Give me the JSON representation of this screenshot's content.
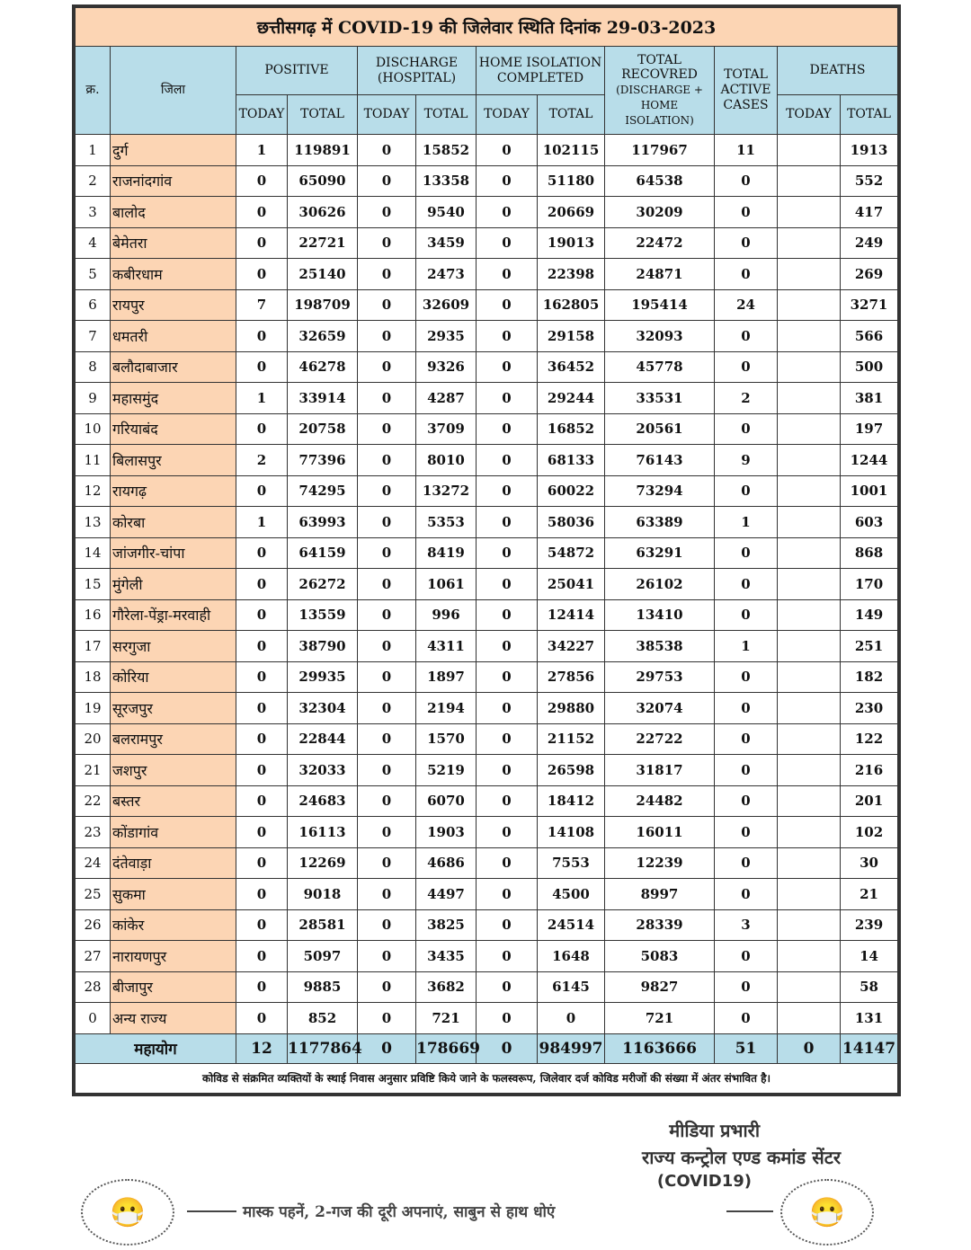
{
  "title": "छत्तीसगढ़ में COVID-19 की जिलेवार स्थिति दिनांक 29-03-2023",
  "headers": {
    "sr": "क्र.",
    "district": "जिला",
    "positive": "POSITIVE",
    "discharge": "DISCHARGE (HOSPITAL)",
    "home_isolation": "HOME ISOLATION COMPLETED",
    "total_recovered": "TOTAL RECOVRED",
    "total_recovered_note": "(DISCHARGE + HOME ISOLATION)",
    "active": "TOTAL ACTIVE CASES",
    "deaths": "DEATHS",
    "today": "TODAY",
    "total": "TOTAL"
  },
  "rows": [
    [
      "1",
      "दुर्ग",
      "1",
      "119891",
      "0",
      "15852",
      "0",
      "102115",
      "117967",
      "11",
      "",
      "1913"
    ],
    [
      "2",
      "राजनांदगांव",
      "0",
      "65090",
      "0",
      "13358",
      "0",
      "51180",
      "64538",
      "0",
      "",
      "552"
    ],
    [
      "3",
      "बालोद",
      "0",
      "30626",
      "0",
      "9540",
      "0",
      "20669",
      "30209",
      "0",
      "",
      "417"
    ],
    [
      "4",
      "बेमेतरा",
      "0",
      "22721",
      "0",
      "3459",
      "0",
      "19013",
      "22472",
      "0",
      "",
      "249"
    ],
    [
      "5",
      "कबीरधाम",
      "0",
      "25140",
      "0",
      "2473",
      "0",
      "22398",
      "24871",
      "0",
      "",
      "269"
    ],
    [
      "6",
      "रायपुर",
      "7",
      "198709",
      "0",
      "32609",
      "0",
      "162805",
      "195414",
      "24",
      "",
      "3271"
    ],
    [
      "7",
      "धमतरी",
      "0",
      "32659",
      "0",
      "2935",
      "0",
      "29158",
      "32093",
      "0",
      "",
      "566"
    ],
    [
      "8",
      "बलौदाबाजार",
      "0",
      "46278",
      "0",
      "9326",
      "0",
      "36452",
      "45778",
      "0",
      "",
      "500"
    ],
    [
      "9",
      "महासमुंद",
      "1",
      "33914",
      "0",
      "4287",
      "0",
      "29244",
      "33531",
      "2",
      "",
      "381"
    ],
    [
      "10",
      "गरियाबंद",
      "0",
      "20758",
      "0",
      "3709",
      "0",
      "16852",
      "20561",
      "0",
      "",
      "197"
    ],
    [
      "11",
      "बिलासपुर",
      "2",
      "77396",
      "0",
      "8010",
      "0",
      "68133",
      "76143",
      "9",
      "",
      "1244"
    ],
    [
      "12",
      "रायगढ़",
      "0",
      "74295",
      "0",
      "13272",
      "0",
      "60022",
      "73294",
      "0",
      "",
      "1001"
    ],
    [
      "13",
      "कोरबा",
      "1",
      "63993",
      "0",
      "5353",
      "0",
      "58036",
      "63389",
      "1",
      "",
      "603"
    ],
    [
      "14",
      "जांजगीर-चांपा",
      "0",
      "64159",
      "0",
      "8419",
      "0",
      "54872",
      "63291",
      "0",
      "",
      "868"
    ],
    [
      "15",
      "मुंगेली",
      "0",
      "26272",
      "0",
      "1061",
      "0",
      "25041",
      "26102",
      "0",
      "",
      "170"
    ],
    [
      "16",
      "गौरेला-पेंड्रा-मरवाही",
      "0",
      "13559",
      "0",
      "996",
      "0",
      "12414",
      "13410",
      "0",
      "",
      "149"
    ],
    [
      "17",
      "सरगुजा",
      "0",
      "38790",
      "0",
      "4311",
      "0",
      "34227",
      "38538",
      "1",
      "",
      "251"
    ],
    [
      "18",
      "कोरिया",
      "0",
      "29935",
      "0",
      "1897",
      "0",
      "27856",
      "29753",
      "0",
      "",
      "182"
    ],
    [
      "19",
      "सूरजपुर",
      "0",
      "32304",
      "0",
      "2194",
      "0",
      "29880",
      "32074",
      "0",
      "",
      "230"
    ],
    [
      "20",
      "बलरामपुर",
      "0",
      "22844",
      "0",
      "1570",
      "0",
      "21152",
      "22722",
      "0",
      "",
      "122"
    ],
    [
      "21",
      "जशपुर",
      "0",
      "32033",
      "0",
      "5219",
      "0",
      "26598",
      "31817",
      "0",
      "",
      "216"
    ],
    [
      "22",
      "बस्तर",
      "0",
      "24683",
      "0",
      "6070",
      "0",
      "18412",
      "24482",
      "0",
      "",
      "201"
    ],
    [
      "23",
      "कोंडागांव",
      "0",
      "16113",
      "0",
      "1903",
      "0",
      "14108",
      "16011",
      "0",
      "",
      "102"
    ],
    [
      "24",
      "दंतेवाड़ा",
      "0",
      "12269",
      "0",
      "4686",
      "0",
      "7553",
      "12239",
      "0",
      "",
      "30"
    ],
    [
      "25",
      "सुकमा",
      "0",
      "9018",
      "0",
      "4497",
      "0",
      "4500",
      "8997",
      "0",
      "",
      "21"
    ],
    [
      "26",
      "कांकेर",
      "0",
      "28581",
      "0",
      "3825",
      "0",
      "24514",
      "28339",
      "3",
      "",
      "239"
    ],
    [
      "27",
      "नारायणपुर",
      "0",
      "5097",
      "0",
      "3435",
      "0",
      "1648",
      "5083",
      "0",
      "",
      "14"
    ],
    [
      "28",
      "बीजापुर",
      "0",
      "9885",
      "0",
      "3682",
      "0",
      "6145",
      "9827",
      "0",
      "",
      "58"
    ],
    [
      "0",
      "अन्य राज्य",
      "0",
      "852",
      "0",
      "721",
      "0",
      "0",
      "721",
      "0",
      "",
      "131"
    ]
  ],
  "total_row": [
    "महायोग",
    "12",
    "1177864",
    "0",
    "178669",
    "0",
    "984997",
    "1163666",
    "51",
    "0",
    "14147"
  ],
  "note": "कोविड से संक्रमित व्यक्तियों के स्थाई निवास अनुसार प्रविष्टि किये जाने के फलस्वरूप, जिलेवार दर्ज कोविड मरीजों की संख्या में अंतर संभावित है।",
  "media": {
    "line1": "मीडिया प्रभारी",
    "line2": "राज्य कन्ट्रोल एण्ड कमांड सेंटर",
    "line3": "(COVID19)"
  },
  "slogan": "मास्क पहनें, 2-गज की दूरी अपनाएं, साबुन से हाथ धोएं"
}
